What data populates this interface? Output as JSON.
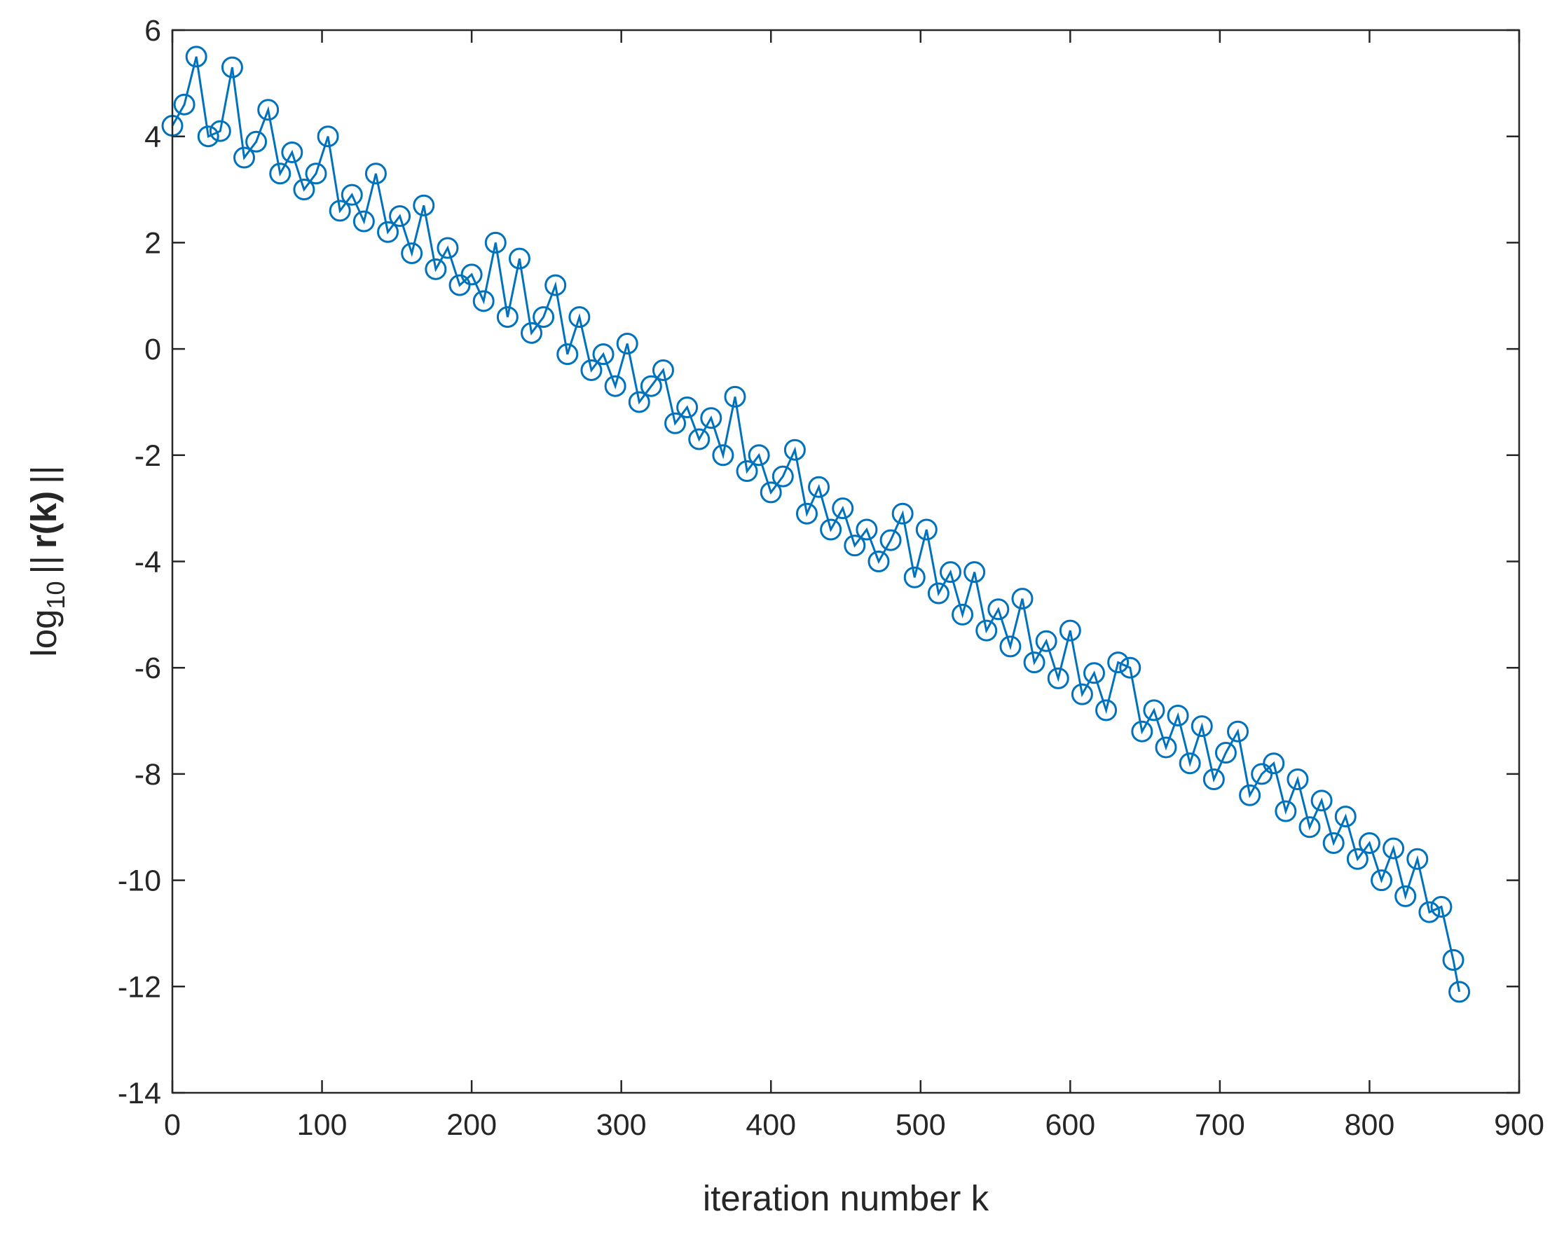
{
  "chart_data": {
    "type": "line",
    "xlabel": "iteration number k",
    "ylabel": [
      "log",
      "10",
      "||",
      "r(k)",
      "||"
    ],
    "x": [
      0,
      8,
      16,
      24,
      32,
      40,
      48,
      56,
      64,
      72,
      80,
      88,
      96,
      104,
      112,
      120,
      128,
      136,
      144,
      152,
      160,
      168,
      176,
      184,
      192,
      200,
      208,
      216,
      224,
      232,
      240,
      248,
      256,
      264,
      272,
      280,
      288,
      296,
      304,
      312,
      320,
      328,
      336,
      344,
      352,
      360,
      368,
      376,
      384,
      392,
      400,
      408,
      416,
      424,
      432,
      440,
      448,
      456,
      464,
      472,
      480,
      488,
      496,
      504,
      512,
      520,
      528,
      536,
      544,
      552,
      560,
      568,
      576,
      584,
      592,
      600,
      608,
      616,
      624,
      632,
      640,
      648,
      656,
      664,
      672,
      680,
      688,
      696,
      704,
      712,
      720,
      728,
      736,
      744,
      752,
      760,
      768,
      776,
      784,
      792,
      800,
      808,
      816,
      824,
      832,
      840,
      848,
      856,
      860
    ],
    "series": [
      {
        "color": "#0072bd",
        "marker": "circle",
        "values": [
          4.2,
          4.6,
          5.5,
          4.0,
          4.1,
          5.3,
          3.6,
          3.9,
          4.5,
          3.3,
          3.7,
          3.0,
          3.3,
          4.0,
          2.6,
          2.9,
          2.4,
          3.3,
          2.2,
          2.5,
          1.8,
          2.7,
          1.5,
          1.9,
          1.2,
          1.4,
          0.9,
          2.0,
          0.6,
          1.7,
          0.3,
          0.6,
          1.2,
          -0.1,
          0.6,
          -0.4,
          -0.1,
          -0.7,
          0.1,
          -1.0,
          -0.7,
          -0.4,
          -1.4,
          -1.1,
          -1.7,
          -1.3,
          -2.0,
          -0.9,
          -2.3,
          -2.0,
          -2.7,
          -2.4,
          -1.9,
          -3.1,
          -2.6,
          -3.4,
          -3.0,
          -3.7,
          -3.4,
          -4.0,
          -3.6,
          -3.1,
          -4.3,
          -3.4,
          -4.6,
          -4.2,
          -5.0,
          -4.2,
          -5.3,
          -4.9,
          -5.6,
          -4.7,
          -5.9,
          -5.5,
          -6.2,
          -5.3,
          -6.5,
          -6.1,
          -6.8,
          -5.9,
          -6.0,
          -7.2,
          -6.8,
          -7.5,
          -6.9,
          -7.8,
          -7.1,
          -8.1,
          -7.6,
          -7.2,
          -8.4,
          -8.0,
          -7.8,
          -8.7,
          -8.1,
          -9.0,
          -8.5,
          -9.3,
          -8.8,
          -9.6,
          -9.3,
          -10.0,
          -9.4,
          -10.3,
          -9.6,
          -10.6,
          -10.5,
          -11.5,
          -12.1
        ]
      }
    ],
    "xlim": [
      0,
      900
    ],
    "xticks": [
      0,
      100,
      200,
      300,
      400,
      500,
      600,
      700,
      800,
      900
    ],
    "ylim": [
      -14,
      6
    ],
    "yticks": [
      -14,
      -12,
      -10,
      -8,
      -6,
      -4,
      -2,
      0,
      2,
      4,
      6
    ],
    "grid": false
  }
}
